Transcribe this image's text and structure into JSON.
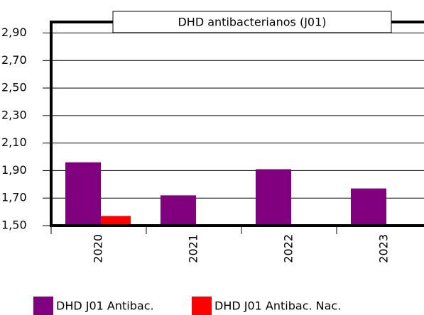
{
  "chart_data": {
    "type": "bar",
    "title": "DHD antibacterianos (J01)",
    "categories": [
      "2020",
      "2021",
      "2022",
      "2023"
    ],
    "series": [
      {
        "name": "DHD J01 Antibac.",
        "color": "#800080",
        "values": [
          1.96,
          1.72,
          1.91,
          1.77
        ]
      },
      {
        "name": "DHD J01 Antibac. Nac.",
        "color": "#ff0000",
        "values": [
          1.57,
          null,
          null,
          null
        ]
      }
    ],
    "ylim": [
      1.5,
      2.98
    ],
    "yticks": [
      {
        "value": 1.5,
        "label": "1,50"
      },
      {
        "value": 1.7,
        "label": "1,70"
      },
      {
        "value": 1.9,
        "label": "1,90"
      },
      {
        "value": 2.1,
        "label": "2,10"
      },
      {
        "value": 2.3,
        "label": "2,30"
      },
      {
        "value": 2.5,
        "label": "2,50"
      },
      {
        "value": 2.7,
        "label": "2,70"
      },
      {
        "value": 2.9,
        "label": "2,90"
      }
    ],
    "grid": true
  }
}
